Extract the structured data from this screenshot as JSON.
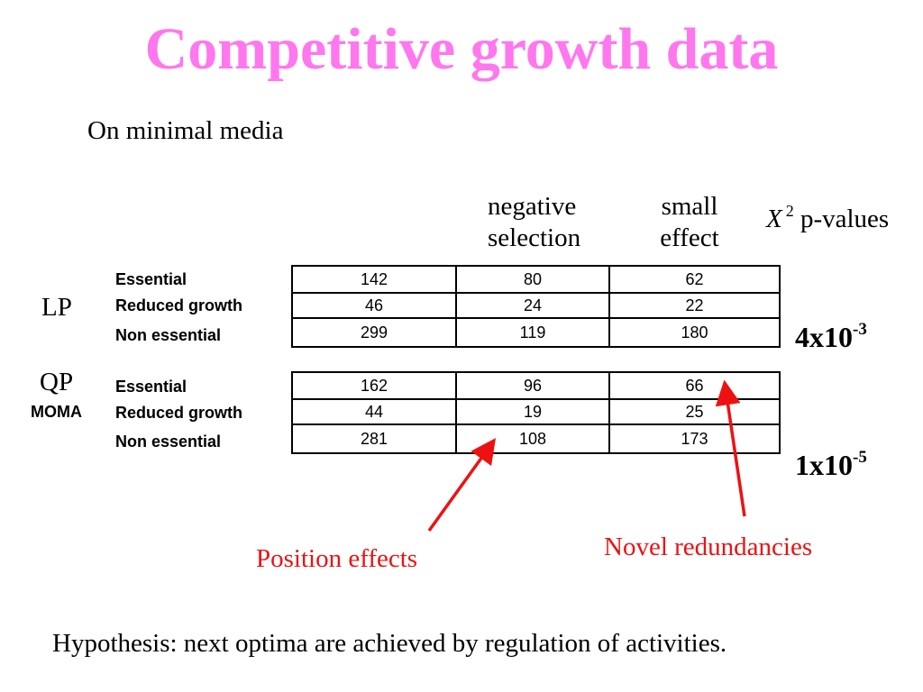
{
  "title": "Competitive growth data",
  "subtitle": "On minimal media",
  "columns": {
    "negative_line1": "negative",
    "negative_line2": "selection",
    "small_line1": "small",
    "small_line2": "effect",
    "pvalue_symbol": "X",
    "pvalue_exponent": "2",
    "pvalue_text": "p-values"
  },
  "groups": {
    "lp_label": "LP",
    "qp_label": "QP",
    "moma_label": "MOMA"
  },
  "table_lp": {
    "rows": [
      {
        "label": "Essential",
        "total": "142",
        "negative_selection": "80",
        "small_effect": "62"
      },
      {
        "label": "Reduced growth",
        "total": "46",
        "negative_selection": "24",
        "small_effect": "22"
      },
      {
        "label": "Non essential",
        "total": "299",
        "negative_selection": "119",
        "small_effect": "180"
      }
    ]
  },
  "table_qp": {
    "rows": [
      {
        "label": "Essential",
        "total": "162",
        "negative_selection": "96",
        "small_effect": "66"
      },
      {
        "label": "Reduced growth",
        "total": "44",
        "negative_selection": "19",
        "small_effect": "25"
      },
      {
        "label": "Non essential",
        "total": "281",
        "negative_selection": "108",
        "small_effect": "173"
      }
    ]
  },
  "pvalues": {
    "lp_base": "4x10",
    "lp_exp": "-3",
    "qp_base": "1x10",
    "qp_exp": "-5"
  },
  "annotations": {
    "position_effects": "Position effects",
    "novel_redundancies": "Novel redundancies"
  },
  "hypothesis": "Hypothesis: next optima are achieved by regulation of activities.",
  "colors": {
    "title": "#ff77ee",
    "annotation": "#ee1111",
    "arrow": "#ee1111"
  }
}
